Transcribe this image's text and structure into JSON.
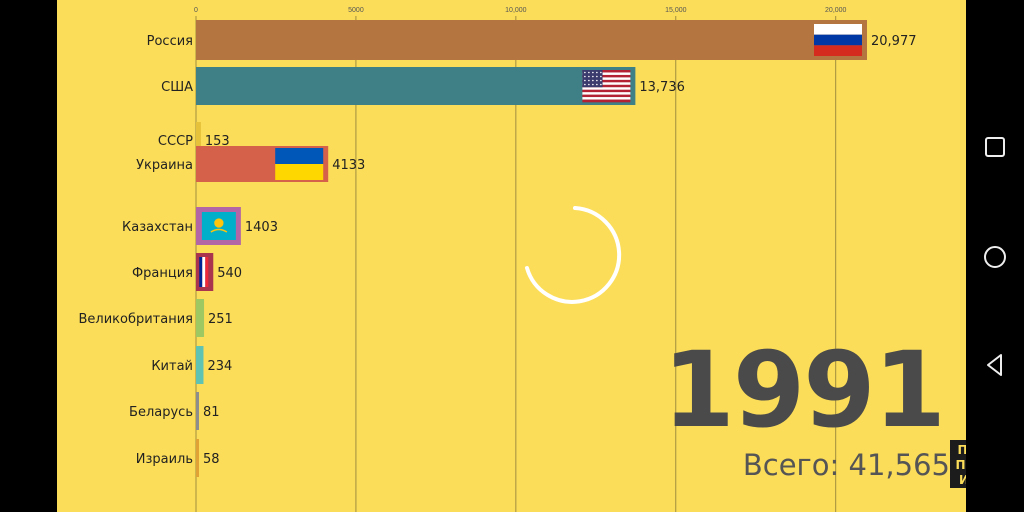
{
  "chart_data": {
    "type": "bar",
    "orientation": "horizontal",
    "xlim": [
      0,
      20977
    ],
    "x_ticks": [
      0,
      5000,
      10000,
      15000,
      20000
    ],
    "x_tick_labels": [
      "0",
      "5000",
      "10,000",
      "15,000",
      "20,000"
    ],
    "grid": true,
    "bars": [
      {
        "label": "Россия",
        "value": 20977,
        "value_label": "20,977",
        "color": "#b47541",
        "flag": "russia"
      },
      {
        "label": "США",
        "value": 13736,
        "value_label": "13,736",
        "color": "#3f7f86",
        "flag": "usa"
      },
      {
        "label": "СССР",
        "value": 153,
        "value_label": "153",
        "color": "#e5c23a",
        "flag": ""
      },
      {
        "label": "Украина",
        "value": 4133,
        "value_label": "4133",
        "color": "#d6614a",
        "flag": "ukraine"
      },
      {
        "label": "Казахстан",
        "value": 1403,
        "value_label": "1403",
        "color": "#b266a6",
        "flag": "kazakhstan"
      },
      {
        "label": "Франция",
        "value": 540,
        "value_label": "540",
        "color": "#a8344e",
        "flag": "france"
      },
      {
        "label": "Великобритания",
        "value": 251,
        "value_label": "251",
        "color": "#9dc862",
        "flag": ""
      },
      {
        "label": "Китай",
        "value": 234,
        "value_label": "234",
        "color": "#5fc3b4",
        "flag": ""
      },
      {
        "label": "Беларусь",
        "value": 81,
        "value_label": "81",
        "color": "#8d8d8d",
        "flag": ""
      },
      {
        "label": "Израиль",
        "value": 58,
        "value_label": "58",
        "color": "#e0a235",
        "flag": ""
      }
    ]
  },
  "year": "1991",
  "total_text": "Всего: 41,565",
  "subscribe": {
    "line1": "ПОД",
    "line2": "ПИШ",
    "line3": "ИСЬ"
  },
  "colors": {
    "background": "#fbdd59",
    "grid": "#8a7a3a",
    "text": "#222222"
  }
}
